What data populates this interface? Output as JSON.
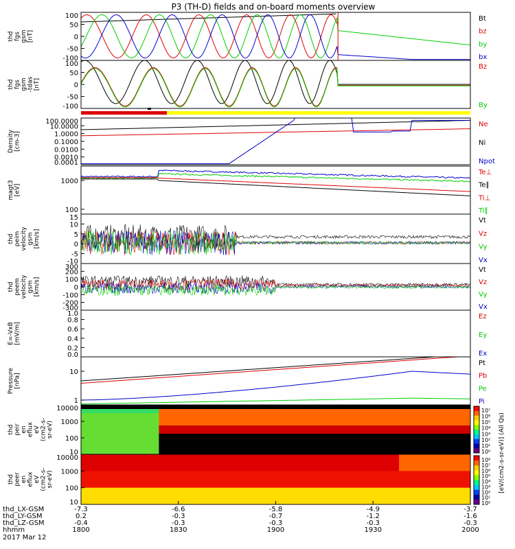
{
  "title": "P3 (TH-D) fields and on-board moments overview",
  "colors": {
    "black": "#000000",
    "red": "#dd0000",
    "green": "#00cc00",
    "blue": "#0000cc",
    "yellow": "#ffff00"
  },
  "panels": [
    {
      "id": "fgs",
      "ylabel": [
        "thd",
        "fgs",
        "gsm",
        "[nT]"
      ],
      "yticks": [
        "100",
        "50",
        "0",
        "-50",
        "-100"
      ],
      "legend": [
        {
          "t": "Bt",
          "c": "black"
        },
        {
          "t": "bz",
          "c": "red"
        },
        {
          "t": "by",
          "c": "green"
        },
        {
          "t": "bx",
          "c": "blue"
        }
      ]
    },
    {
      "id": "fgs-tdas",
      "ylabel": [
        "thd",
        "fgs",
        "gsm",
        "-tdas",
        "[nT]"
      ],
      "yticks": [
        "100",
        "50",
        "0",
        "-50",
        "-100"
      ],
      "legend": [
        {
          "t": "Bz",
          "c": "red"
        },
        {
          "t": "By",
          "c": "green"
        }
      ]
    },
    {
      "id": "density",
      "ylabel": [
        "Density",
        "[cm-3]"
      ],
      "yticks": [
        "100.0000",
        "10.0000",
        "1.0000",
        "0.1000",
        "0.0100",
        "0.0010",
        "0.0001"
      ],
      "legend": [
        {
          "t": "Ne",
          "c": "red"
        },
        {
          "t": "Ni",
          "c": "black"
        },
        {
          "t": "Npot",
          "c": "blue"
        }
      ]
    },
    {
      "id": "temp",
      "ylabel": [
        "magt3",
        "[eV]"
      ],
      "yticks": [
        "1000",
        "100"
      ],
      "legend": [
        {
          "t": "Te⊥",
          "c": "red"
        },
        {
          "t": "Te∥",
          "c": "black"
        },
        {
          "t": "Ti⊥",
          "c": "red"
        },
        {
          "t": "Ti∥",
          "c": "green"
        }
      ]
    },
    {
      "id": "peim",
      "ylabel": [
        "thd",
        "peim",
        "velocity",
        "gsm",
        "[km/s]"
      ],
      "yticks": [
        "15",
        "10",
        "5",
        "0",
        "-5",
        "-10"
      ],
      "legend": [
        {
          "t": "Vt",
          "c": "black"
        },
        {
          "t": "Vz",
          "c": "red"
        },
        {
          "t": "Vy",
          "c": "green"
        },
        {
          "t": "Vx",
          "c": "blue"
        }
      ]
    },
    {
      "id": "peem",
      "ylabel": [
        "thd",
        "peem",
        "velocity",
        "gsm",
        "[km/s]"
      ],
      "yticks": [
        "300",
        "200",
        "100",
        "0",
        "-100",
        "-200",
        "-300"
      ],
      "legend": [
        {
          "t": "Vt",
          "c": "black"
        },
        {
          "t": "Vz",
          "c": "red"
        },
        {
          "t": "Vy",
          "c": "green"
        },
        {
          "t": "Vx",
          "c": "blue"
        }
      ]
    },
    {
      "id": "efield",
      "ylabel": [
        "E=-VxB",
        "[mV/m]"
      ],
      "yticks": [
        "1.0",
        "0.8",
        "0.6",
        "0.4",
        "0.2",
        "0.0"
      ],
      "legend": [
        {
          "t": "Ez",
          "c": "red"
        },
        {
          "t": "Ey",
          "c": "green"
        },
        {
          "t": "Ex",
          "c": "blue"
        }
      ]
    },
    {
      "id": "pressure",
      "ylabel": [
        "Pressure",
        "[nPa]"
      ],
      "yticks": [
        "10",
        "1"
      ],
      "legend": [
        {
          "t": "Pt",
          "c": "black"
        },
        {
          "t": "Pb",
          "c": "red"
        },
        {
          "t": "Pe",
          "c": "green"
        },
        {
          "t": "Pi",
          "c": "blue"
        }
      ]
    },
    {
      "id": "peir",
      "ylabel": [
        "thd",
        "peir",
        "en",
        "eflux",
        "eV",
        "(cm2-s-",
        "sr-eV)"
      ],
      "yticks": [
        "10000",
        "1000",
        "100",
        "10"
      ],
      "legend": []
    },
    {
      "id": "peer",
      "ylabel": [
        "thd",
        "peer",
        "en",
        "eflux",
        "eV",
        "(cm2-s-",
        "sr-eV)"
      ],
      "yticks": [
        "10000",
        "1000",
        "100",
        "10"
      ],
      "legend": []
    }
  ],
  "colorbar": {
    "label": "[eV/(cm2-s-sr-eV)] (All Qs)",
    "ticks_top": [
      "10⁷",
      "10⁶",
      "10⁵",
      "10⁴",
      "10³",
      "10²",
      "10¹",
      "10⁰"
    ],
    "ticks_bottom": [
      "10⁸",
      "10⁷",
      "10⁶",
      "10⁵",
      "10⁴",
      "10³",
      "10²",
      "10¹",
      "10⁰"
    ]
  },
  "xaxis": {
    "row_labels": [
      "thd_LX-GSM",
      "thd_LY-GSM",
      "thd_LZ-GSM",
      "hhmm",
      "2017 Mar 12"
    ],
    "columns": [
      {
        "lx": "-7.3",
        "ly": "0.2",
        "lz": "-0.4",
        "hhmm": "1800"
      },
      {
        "lx": "-6.6",
        "ly": "-0.3",
        "lz": "-0.3",
        "hhmm": "1830"
      },
      {
        "lx": "-5.8",
        "ly": "-0.7",
        "lz": "-0.3",
        "hhmm": "1900"
      },
      {
        "lx": "-4.9",
        "ly": "-1.2",
        "lz": "-0.3",
        "hhmm": "1930"
      },
      {
        "lx": "-3.7",
        "ly": "-1.6",
        "lz": "-0.3",
        "hhmm": "2000"
      }
    ]
  },
  "chart_data": [
    {
      "type": "line",
      "panel": "fgs",
      "ylim": [
        -100,
        100
      ],
      "x_range": [
        "1800",
        "2000"
      ],
      "series": [
        {
          "name": "Bt"
        },
        {
          "name": "bz"
        },
        {
          "name": "by"
        },
        {
          "name": "bx"
        }
      ]
    },
    {
      "type": "line",
      "panel": "fgs-tdas",
      "ylim": [
        -100,
        100
      ],
      "series": [
        {
          "name": "Bz"
        },
        {
          "name": "By"
        }
      ]
    },
    {
      "type": "line",
      "panel": "density",
      "scale": "log",
      "ylim": [
        0.0001,
        100
      ],
      "series": [
        {
          "name": "Ne"
        },
        {
          "name": "Ni"
        },
        {
          "name": "Npot"
        }
      ]
    },
    {
      "type": "line",
      "panel": "magt3",
      "scale": "log",
      "series": [
        {
          "name": "Te⊥"
        },
        {
          "name": "Te∥"
        },
        {
          "name": "Ti⊥"
        },
        {
          "name": "Ti∥"
        }
      ]
    },
    {
      "type": "line",
      "panel": "peim",
      "ylim": [
        -10,
        15
      ],
      "series": [
        {
          "name": "Vt"
        },
        {
          "name": "Vz"
        },
        {
          "name": "Vy"
        },
        {
          "name": "Vx"
        }
      ]
    },
    {
      "type": "line",
      "panel": "peem",
      "ylim": [
        -300,
        300
      ],
      "series": [
        {
          "name": "Vt"
        },
        {
          "name": "Vz"
        },
        {
          "name": "Vy"
        },
        {
          "name": "Vx"
        }
      ]
    },
    {
      "type": "line",
      "panel": "efield",
      "ylim": [
        0,
        1
      ],
      "series": [
        {
          "name": "Ez"
        },
        {
          "name": "Ey"
        },
        {
          "name": "Ex"
        }
      ]
    },
    {
      "type": "line",
      "panel": "pressure",
      "scale": "log",
      "series": [
        {
          "name": "Pt"
        },
        {
          "name": "Pb"
        },
        {
          "name": "Pe"
        },
        {
          "name": "Pi"
        }
      ]
    },
    {
      "type": "heatmap",
      "panel": "peir",
      "yscale": "log",
      "ylim": [
        10,
        10000
      ]
    },
    {
      "type": "heatmap",
      "panel": "peer",
      "yscale": "log",
      "ylim": [
        10,
        10000
      ]
    }
  ]
}
